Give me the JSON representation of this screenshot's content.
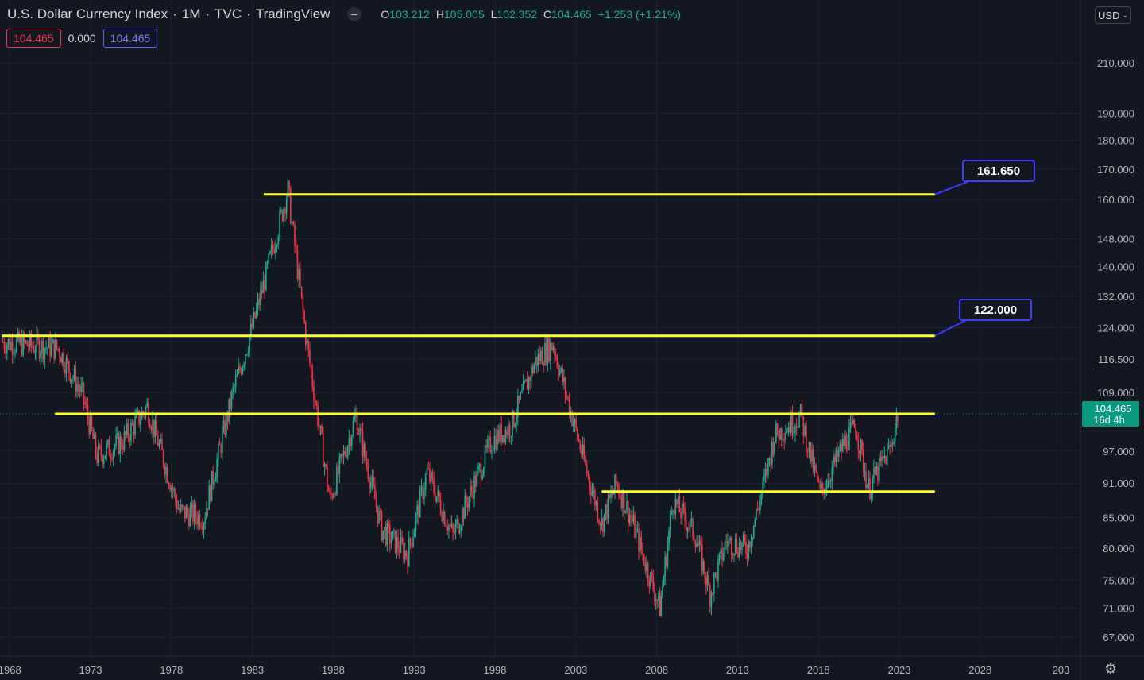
{
  "header": {
    "symbol_name": "U.S. Dollar Currency Index",
    "interval": "1M",
    "exchange": "TVC",
    "source": "TradingView",
    "o_label": "O",
    "o_value": "103.212",
    "h_label": "H",
    "h_value": "105.005",
    "l_label": "L",
    "l_value": "102.352",
    "c_label": "C",
    "c_value": "104.465",
    "change": "+1.253 (+1.21%)"
  },
  "badges": {
    "left_value": "104.465",
    "middle_value": "0.000",
    "right_value": "104.465"
  },
  "currency_button": "USD",
  "colors": {
    "background": "#131722",
    "up": "#22ab94",
    "down": "#f23645",
    "levels": "#ffff2e",
    "callout_border": "#3d3dff",
    "price_tag": "#089981"
  },
  "chart_data": {
    "type": "candlestick",
    "y_scale": "log",
    "ylim": [
      64.5,
      238
    ],
    "xlim": [
      1967.4,
      2034.2
    ],
    "yticks": [
      "210.000",
      "190.000",
      "180.000",
      "170.000",
      "160.000",
      "148.000",
      "140.000",
      "132.000",
      "124.000",
      "116.500",
      "109.000",
      "97.000",
      "91.000",
      "85.000",
      "80.000",
      "75.000",
      "71.000",
      "67.000"
    ],
    "xticks": [
      "1968",
      "1973",
      "1978",
      "1983",
      "1988",
      "1993",
      "1998",
      "2003",
      "2008",
      "2013",
      "2018",
      "2023",
      "2028",
      "203"
    ],
    "key_points": [
      [
        1967.5,
        120.5
      ],
      [
        1971.0,
        119
      ],
      [
        1972.5,
        108.5
      ],
      [
        1973.4,
        96
      ],
      [
        1975.0,
        99
      ],
      [
        1976.5,
        106
      ],
      [
        1978.5,
        86
      ],
      [
        1980.0,
        85
      ],
      [
        1981.8,
        109
      ],
      [
        1983.0,
        124
      ],
      [
        1985.2,
        163
      ],
      [
        1986.3,
        122
      ],
      [
        1987.8,
        88
      ],
      [
        1989.4,
        104
      ],
      [
        1991.0,
        83
      ],
      [
        1992.6,
        79
      ],
      [
        1993.8,
        93
      ],
      [
        1995.4,
        82
      ],
      [
        1997.8,
        99
      ],
      [
        1999.0,
        102
      ],
      [
        2000.5,
        116
      ],
      [
        2001.6,
        120
      ],
      [
        2002.6,
        106
      ],
      [
        2003.6,
        94
      ],
      [
        2004.6,
        84
      ],
      [
        2005.5,
        91
      ],
      [
        2006.4,
        85
      ],
      [
        2008.2,
        71
      ],
      [
        2009.0,
        88
      ],
      [
        2010.4,
        82
      ],
      [
        2011.3,
        73
      ],
      [
        2012.3,
        81
      ],
      [
        2013.6,
        80
      ],
      [
        2014.4,
        88
      ],
      [
        2015.3,
        100
      ],
      [
        2016.9,
        104
      ],
      [
        2017.6,
        95
      ],
      [
        2018.1,
        89
      ],
      [
        2019.5,
        98
      ],
      [
        2020.3,
        102
      ],
      [
        2021.1,
        90
      ],
      [
        2022.5,
        98
      ],
      [
        2022.9,
        104.5
      ]
    ],
    "levels": [
      {
        "value": 161.65,
        "x_start": 1983.7,
        "x_end": 2025.2
      },
      {
        "value": 122.0,
        "x_start": 1967.5,
        "x_end": 2025.2
      },
      {
        "value": 104.465,
        "x_start": 1970.8,
        "x_end": 2025.2
      },
      {
        "value": 89.5,
        "x_start": 2004.6,
        "x_end": 2025.2
      }
    ],
    "callouts": [
      "161.650",
      "122.000"
    ],
    "last_price": "104.465",
    "countdown": "16d 4h"
  }
}
